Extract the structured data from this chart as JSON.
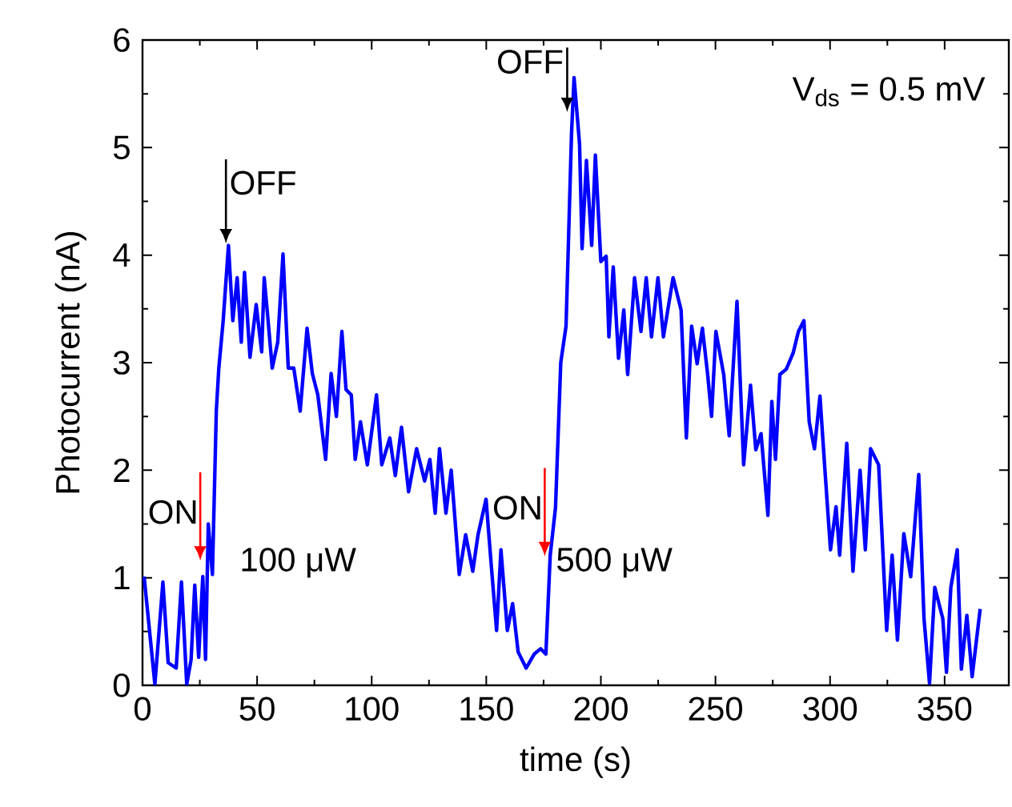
{
  "chart_data": {
    "type": "line",
    "xlabel": "time (s)",
    "ylabel": "Photocurrent (nA)",
    "xlim": [
      0,
      378
    ],
    "ylim": [
      0,
      6
    ],
    "xticks": [
      0,
      50,
      100,
      150,
      200,
      250,
      300,
      350
    ],
    "yticks": [
      0,
      1,
      2,
      3,
      4,
      5,
      6
    ],
    "marker": "none",
    "line_style": "solid",
    "annotations": [
      {
        "text": "ON",
        "x": 25.2,
        "y": 1.16
      },
      {
        "text": "OFF",
        "x": 36.4,
        "y": 4.11
      },
      {
        "text": "ON",
        "x": 175.5,
        "y": 1.2
      },
      {
        "text": "OFF",
        "x": 185.3,
        "y": 5.33
      },
      "100 μW",
      "500 μW",
      "V$_{ds}$ = 0.5 mV"
    ],
    "series": [
      {
        "color": "#0000ff",
        "x": [
          0.7,
          5.4,
          8.9,
          11.2,
          14.7,
          17,
          19.3,
          21.2,
          22.8,
          24.5,
          26.3,
          27.5,
          28.7,
          30.5,
          32.2,
          33.3,
          35.2,
          37.5,
          39.4,
          41.3,
          43.1,
          44.5,
          46.9,
          49.6,
          52,
          53.1,
          54.8,
          56.6,
          59,
          61.3,
          63.6,
          66,
          68.8,
          71.8,
          74.1,
          76.5,
          79.9,
          82.3,
          84.6,
          87,
          88.8,
          91.1,
          92.8,
          95.1,
          98.1,
          102.1,
          104.4,
          107.9,
          110.3,
          113,
          116.1,
          119.6,
          123.1,
          125.4,
          127.7,
          129.6,
          132.4,
          134.7,
          138.2,
          141,
          144.1,
          146.4,
          149.9,
          152.2,
          154.5,
          156.4,
          159.2,
          161.5,
          163.9,
          167.4,
          170.9,
          173.7,
          176,
          177.9,
          180.2,
          182.5,
          184.8,
          187.2,
          188.3,
          190.7,
          191.8,
          193.7,
          196,
          197.6,
          200,
          202.3,
          203.5,
          205.4,
          207.7,
          210,
          211.7,
          214.7,
          217.5,
          219.8,
          222.1,
          224.9,
          227.3,
          231.5,
          235,
          237.3,
          239.6,
          242,
          244.3,
          246.6,
          248.3,
          250.2,
          253.6,
          256,
          259.4,
          262.3,
          265.3,
          267.6,
          269.9,
          272.9,
          274.6,
          276.2,
          278.1,
          280.9,
          283.9,
          286.2,
          288.6,
          290.9,
          293.2,
          295.6,
          297.9,
          300.2,
          302.6,
          304.2,
          307.3,
          310,
          313.1,
          315.4,
          317.7,
          321.2,
          324.7,
          327.1,
          329.4,
          332.2,
          335.2,
          338.7,
          341,
          343.4,
          345.7,
          349.2,
          350.8,
          352.7,
          355.5,
          357.3,
          359.7,
          362,
          365.5
        ],
        "values": [
          1.01,
          0.01,
          0.96,
          0.21,
          0.16,
          0.96,
          0.01,
          0.24,
          0.93,
          0.26,
          1.01,
          0.24,
          1.5,
          1.03,
          2.55,
          2.95,
          3.39,
          4.09,
          3.39,
          3.79,
          3.19,
          3.84,
          3.05,
          3.54,
          3.1,
          3.79,
          3.39,
          2.95,
          3.19,
          4.01,
          2.95,
          2.95,
          2.55,
          3.32,
          2.9,
          2.7,
          2.1,
          2.9,
          2.5,
          3.29,
          2.75,
          2.7,
          2.1,
          2.45,
          2.05,
          2.7,
          2.05,
          2.3,
          1.95,
          2.4,
          1.8,
          2.2,
          1.9,
          2.1,
          1.6,
          2.2,
          1.6,
          2.0,
          1.03,
          1.4,
          1.06,
          1.4,
          1.73,
          1.11,
          0.51,
          1.26,
          0.51,
          0.76,
          0.31,
          0.16,
          0.29,
          0.34,
          0.29,
          1.21,
          1.65,
          3.0,
          3.34,
          5.13,
          5.65,
          5.03,
          4.06,
          4.88,
          4.09,
          4.93,
          3.94,
          3.99,
          3.24,
          3.89,
          3.04,
          3.49,
          2.89,
          3.79,
          3.29,
          3.79,
          3.24,
          3.79,
          3.24,
          3.79,
          3.49,
          2.3,
          3.34,
          2.99,
          3.32,
          2.89,
          2.5,
          3.29,
          2.89,
          2.32,
          3.57,
          2.05,
          2.79,
          2.19,
          2.34,
          1.58,
          2.64,
          2.1,
          2.89,
          2.94,
          3.09,
          3.29,
          3.39,
          2.45,
          2.2,
          2.69,
          1.96,
          1.26,
          1.66,
          1.21,
          2.25,
          1.06,
          2.0,
          1.26,
          2.2,
          2.05,
          0.51,
          1.21,
          0.42,
          1.41,
          1.01,
          1.96,
          0.62,
          0.02,
          0.91,
          0.62,
          0.12,
          0.91,
          1.26,
          0.15,
          0.65,
          0.08,
          0.71
        ]
      }
    ]
  }
}
